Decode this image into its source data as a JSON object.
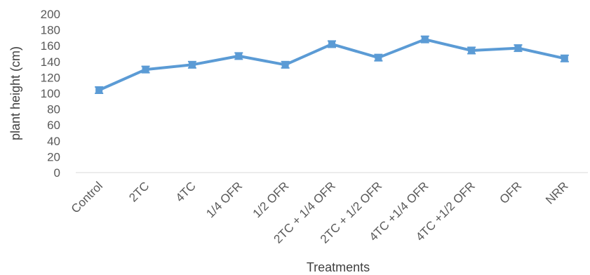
{
  "chart_data": {
    "type": "line",
    "title": "",
    "xlabel": "Treatments",
    "ylabel": "plant height (cm)",
    "ylim": [
      0,
      200
    ],
    "yticks": [
      0,
      20,
      40,
      60,
      80,
      100,
      120,
      140,
      160,
      180,
      200
    ],
    "grid": false,
    "legend": "none",
    "categories": [
      "Control",
      "2TC",
      "4TC",
      "1/4 OFR",
      "1/2 OFR",
      "2TC + 1/4 OFR",
      "2TC + 1/2 OFR",
      "4TC +1/4 OFR",
      "4TC +1/2 OFR",
      "OFR",
      "NRR"
    ],
    "series": [
      {
        "values": [
          104,
          130,
          136,
          147,
          136,
          162,
          145,
          168,
          154,
          157,
          144
        ],
        "error": [
          4,
          4,
          4,
          4,
          4,
          4,
          4,
          4,
          4,
          4,
          4
        ],
        "color": "#5B9BD5"
      }
    ]
  }
}
